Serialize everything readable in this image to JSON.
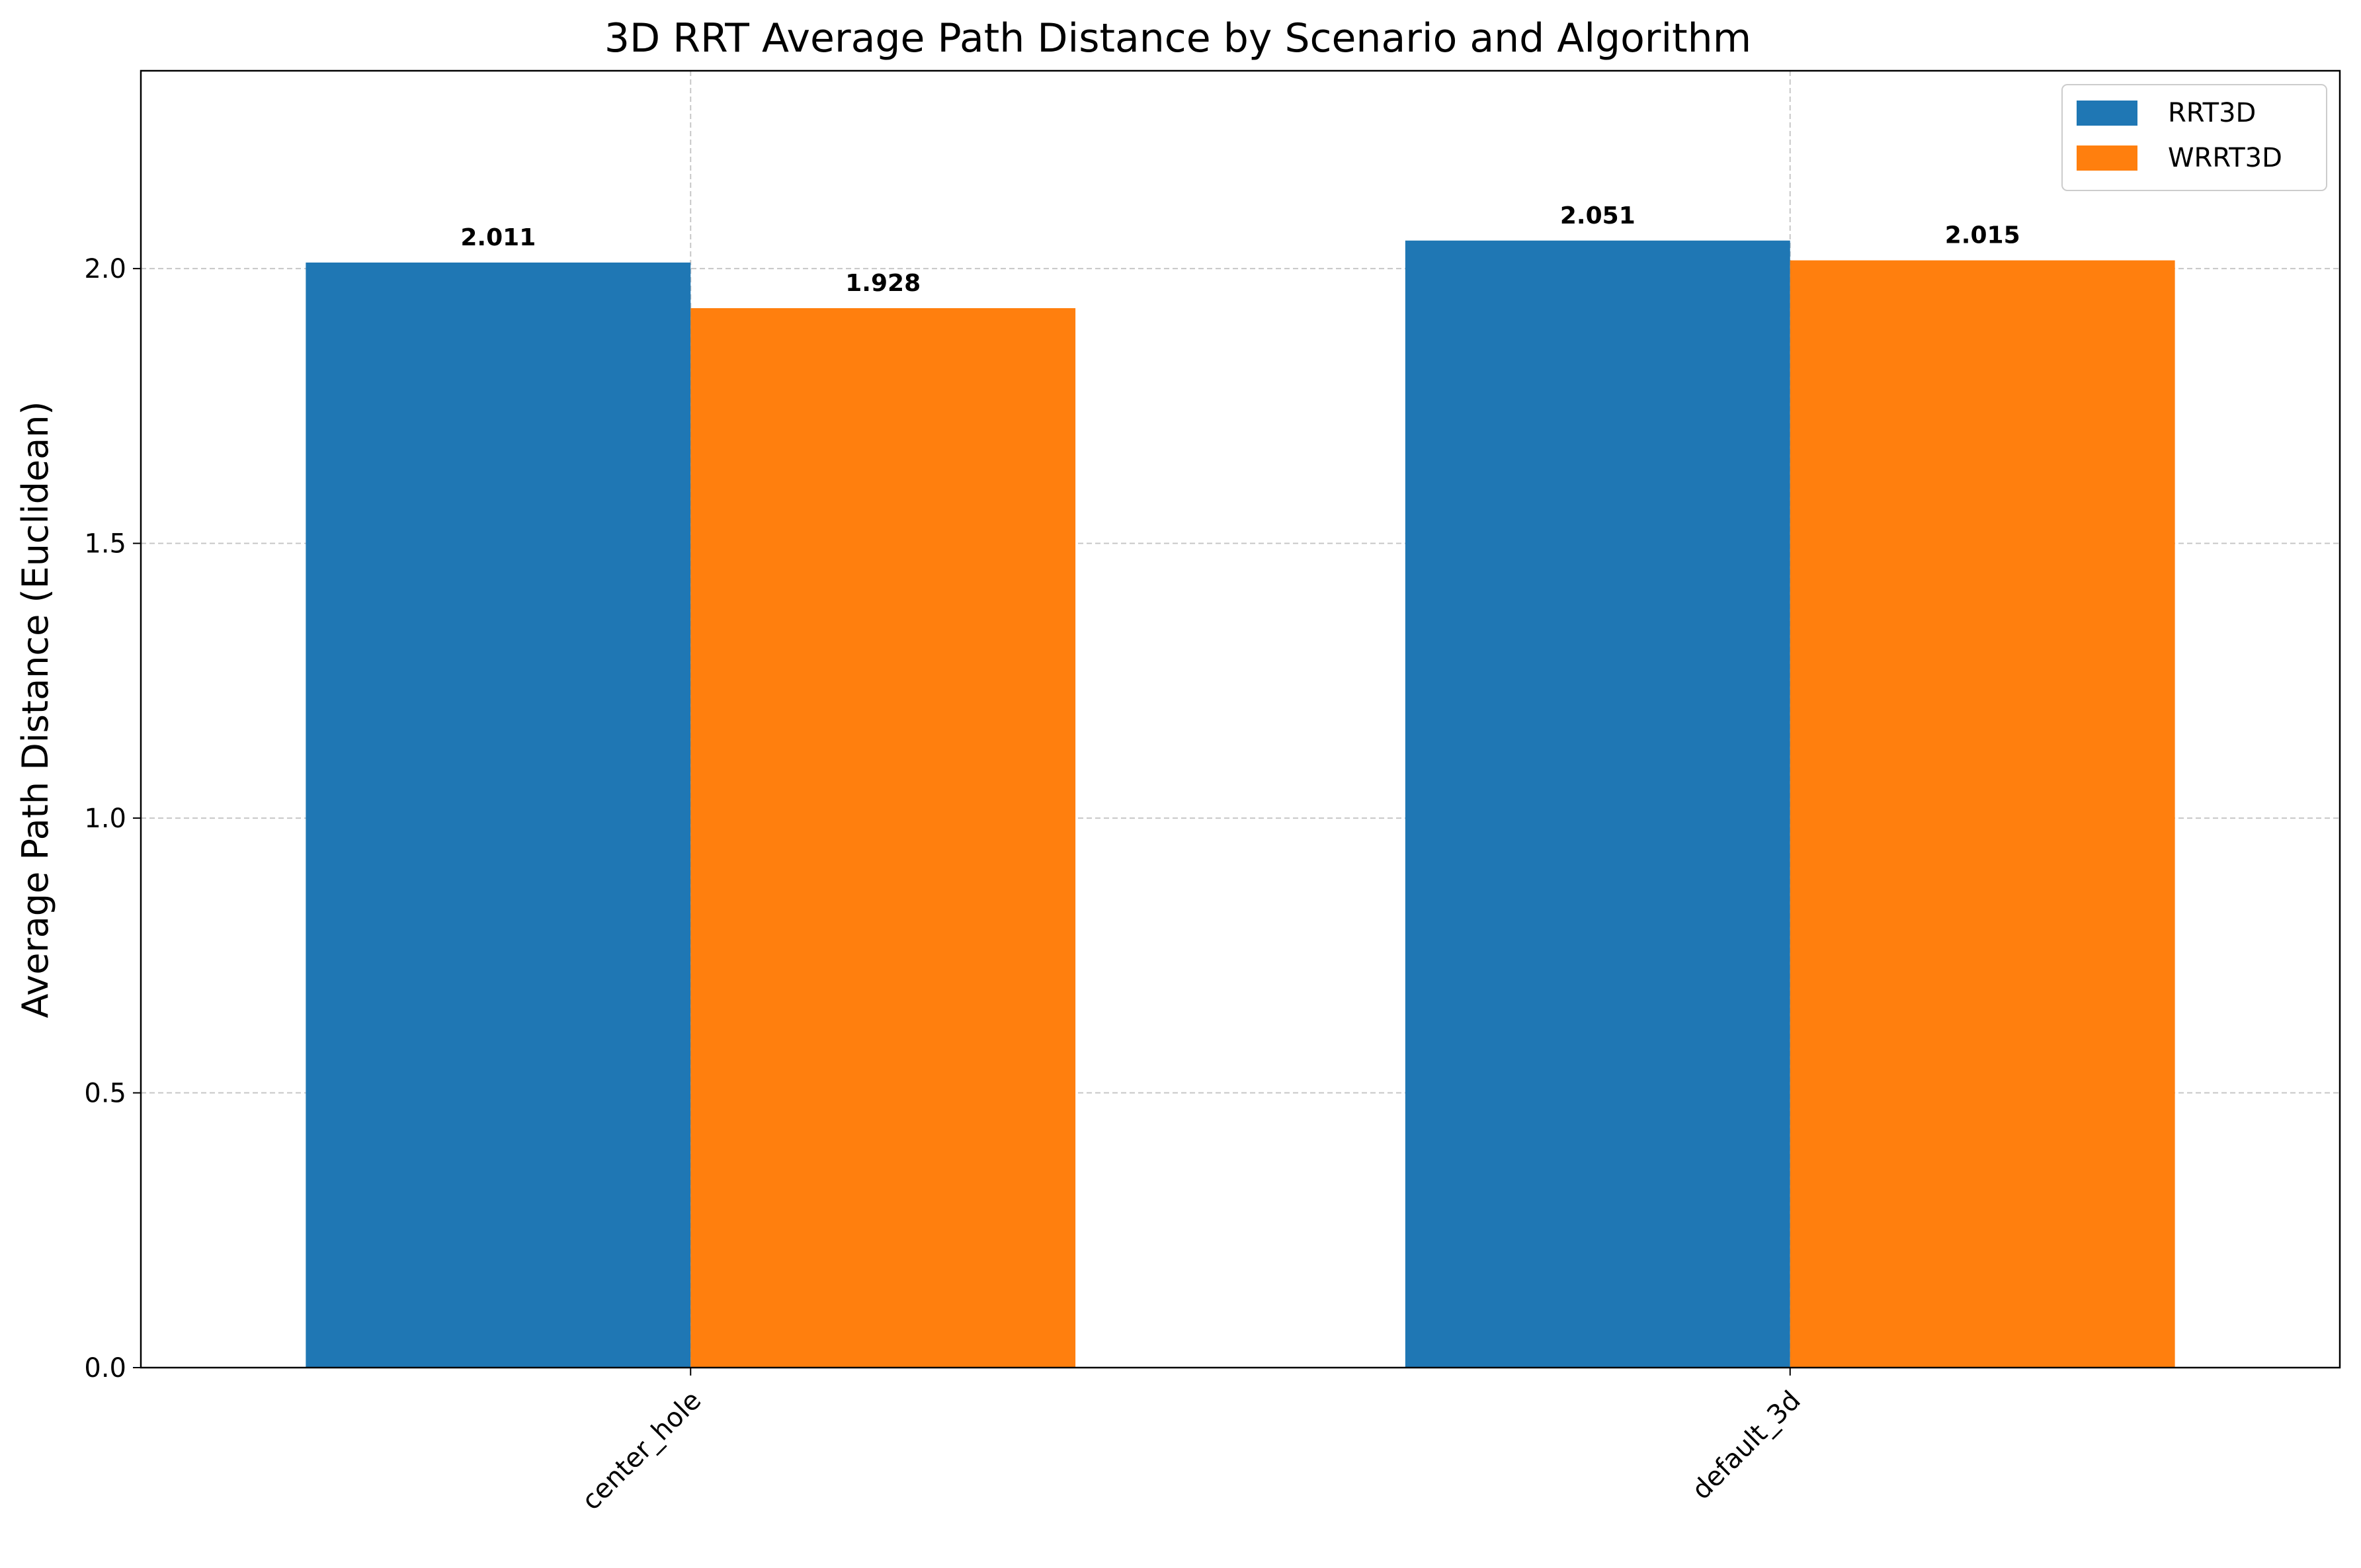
{
  "chart_data": {
    "type": "bar",
    "title": "3D RRT Average Path Distance by Scenario and Algorithm",
    "xlabel": "",
    "ylabel": "Average Path Distance (Euclidean)",
    "categories": [
      "center_hole",
      "default_3d"
    ],
    "series": [
      {
        "name": "RRT3D",
        "color": "#1f77b4",
        "values": [
          2.011,
          2.051
        ]
      },
      {
        "name": "WRRT3D",
        "color": "#ff7f0e",
        "values": [
          1.928,
          2.015
        ]
      }
    ],
    "ylim": [
      0,
      2.36
    ],
    "yticks": [
      "0.0",
      "0.5",
      "1.0",
      "1.5",
      "2.0"
    ],
    "grid": true,
    "legend": "top-right",
    "bar_labels": true
  }
}
